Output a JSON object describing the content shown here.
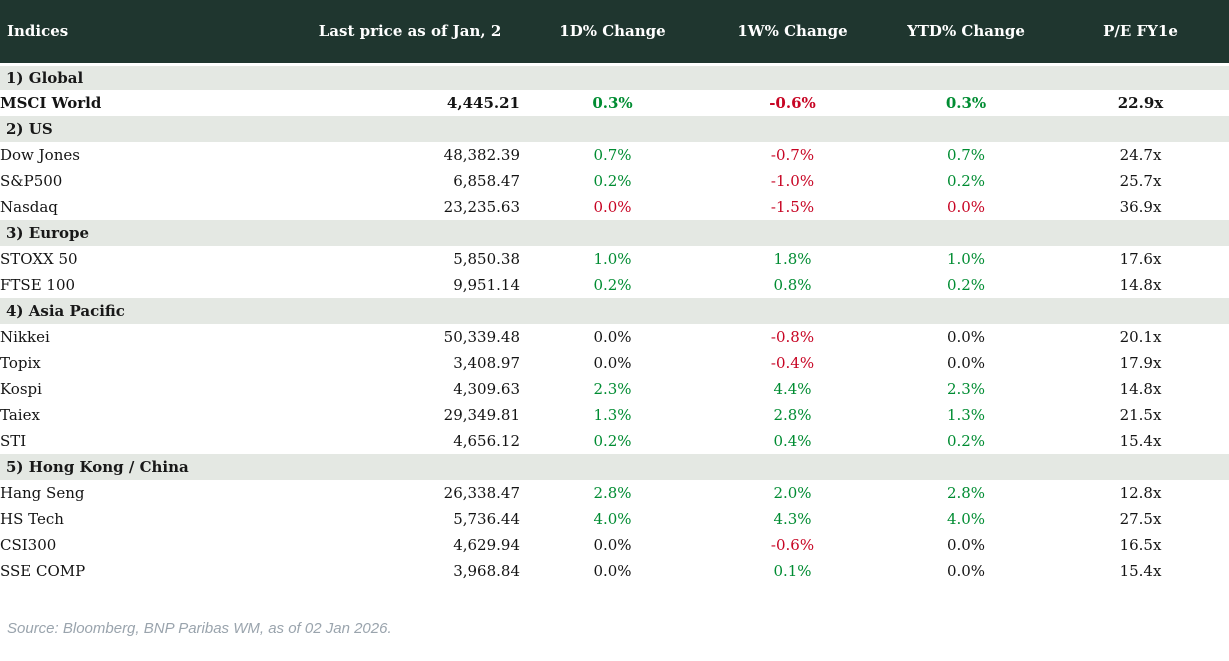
{
  "table": {
    "columns": [
      "Indices",
      "Last price as of Jan, 2",
      "1D% Change",
      "1W% Change",
      "YTD% Change",
      "P/E FY1e"
    ],
    "sections": [
      {
        "label": "1) Global",
        "rows": [
          {
            "name": "MSCI World",
            "price": "4,445.21",
            "d1": {
              "v": "0.3%",
              "c": "up"
            },
            "w1": {
              "v": "-0.6%",
              "c": "down"
            },
            "ytd": {
              "v": "0.3%",
              "c": "up"
            },
            "pe": "22.9x",
            "highlight": true
          }
        ]
      },
      {
        "label": "2) US",
        "rows": [
          {
            "name": "Dow Jones",
            "price": "48,382.39",
            "d1": {
              "v": "0.7%",
              "c": "up"
            },
            "w1": {
              "v": "-0.7%",
              "c": "down"
            },
            "ytd": {
              "v": "0.7%",
              "c": "up"
            },
            "pe": "24.7x",
            "highlight": false
          },
          {
            "name": "S&P500",
            "price": "6,858.47",
            "d1": {
              "v": "0.2%",
              "c": "up"
            },
            "w1": {
              "v": "-1.0%",
              "c": "down"
            },
            "ytd": {
              "v": "0.2%",
              "c": "up"
            },
            "pe": "25.7x",
            "highlight": false
          },
          {
            "name": "Nasdaq",
            "price": "23,235.63",
            "d1": {
              "v": "0.0%",
              "c": "down"
            },
            "w1": {
              "v": "-1.5%",
              "c": "down"
            },
            "ytd": {
              "v": "0.0%",
              "c": "down"
            },
            "pe": "36.9x",
            "highlight": false
          }
        ]
      },
      {
        "label": "3) Europe",
        "rows": [
          {
            "name": "STOXX 50",
            "price": "5,850.38",
            "d1": {
              "v": "1.0%",
              "c": "up"
            },
            "w1": {
              "v": "1.8%",
              "c": "up"
            },
            "ytd": {
              "v": "1.0%",
              "c": "up"
            },
            "pe": "17.6x",
            "highlight": false
          },
          {
            "name": "FTSE 100",
            "price": "9,951.14",
            "d1": {
              "v": "0.2%",
              "c": "up"
            },
            "w1": {
              "v": "0.8%",
              "c": "up"
            },
            "ytd": {
              "v": "0.2%",
              "c": "up"
            },
            "pe": "14.8x",
            "highlight": false
          }
        ]
      },
      {
        "label": "4) Asia Pacific",
        "rows": [
          {
            "name": "Nikkei",
            "price": "50,339.48",
            "d1": {
              "v": "0.0%",
              "c": "flat"
            },
            "w1": {
              "v": "-0.8%",
              "c": "down"
            },
            "ytd": {
              "v": "0.0%",
              "c": "flat"
            },
            "pe": "20.1x",
            "highlight": false
          },
          {
            "name": "Topix",
            "price": "3,408.97",
            "d1": {
              "v": "0.0%",
              "c": "flat"
            },
            "w1": {
              "v": "-0.4%",
              "c": "down"
            },
            "ytd": {
              "v": "0.0%",
              "c": "flat"
            },
            "pe": "17.9x",
            "highlight": false
          },
          {
            "name": "Kospi",
            "price": "4,309.63",
            "d1": {
              "v": "2.3%",
              "c": "up"
            },
            "w1": {
              "v": "4.4%",
              "c": "up"
            },
            "ytd": {
              "v": "2.3%",
              "c": "up"
            },
            "pe": "14.8x",
            "highlight": false
          },
          {
            "name": "Taiex",
            "price": "29,349.81",
            "d1": {
              "v": "1.3%",
              "c": "up"
            },
            "w1": {
              "v": "2.8%",
              "c": "up"
            },
            "ytd": {
              "v": "1.3%",
              "c": "up"
            },
            "pe": "21.5x",
            "highlight": false
          },
          {
            "name": "STI",
            "price": "4,656.12",
            "d1": {
              "v": "0.2%",
              "c": "up"
            },
            "w1": {
              "v": "0.4%",
              "c": "up"
            },
            "ytd": {
              "v": "0.2%",
              "c": "up"
            },
            "pe": "15.4x",
            "highlight": false
          }
        ]
      },
      {
        "label": "5) Hong Kong / China",
        "rows": [
          {
            "name": "Hang Seng",
            "price": "26,338.47",
            "d1": {
              "v": "2.8%",
              "c": "up"
            },
            "w1": {
              "v": "2.0%",
              "c": "up"
            },
            "ytd": {
              "v": "2.8%",
              "c": "up"
            },
            "pe": "12.8x",
            "highlight": false
          },
          {
            "name": "HS Tech",
            "price": "5,736.44",
            "d1": {
              "v": "4.0%",
              "c": "up"
            },
            "w1": {
              "v": "4.3%",
              "c": "up"
            },
            "ytd": {
              "v": "4.0%",
              "c": "up"
            },
            "pe": "27.5x",
            "highlight": false
          },
          {
            "name": "CSI300",
            "price": "4,629.94",
            "d1": {
              "v": "0.0%",
              "c": "flat"
            },
            "w1": {
              "v": "-0.6%",
              "c": "down"
            },
            "ytd": {
              "v": "0.0%",
              "c": "flat"
            },
            "pe": "16.5x",
            "highlight": false
          },
          {
            "name": "SSE COMP",
            "price": "3,968.84",
            "d1": {
              "v": "0.0%",
              "c": "flat"
            },
            "w1": {
              "v": "0.1%",
              "c": "up"
            },
            "ytd": {
              "v": "0.0%",
              "c": "flat"
            },
            "pe": "15.4x",
            "highlight": false
          }
        ]
      }
    ]
  },
  "footer": {
    "source": "Source: Bloomberg, BNP Paribas WM, as of 02 Jan 2026."
  },
  "colors": {
    "header_bg": "#1f362f",
    "section_bg": "#e4e8e3",
    "up": "#008c32",
    "down": "#c70423",
    "neutral": "#141414"
  }
}
